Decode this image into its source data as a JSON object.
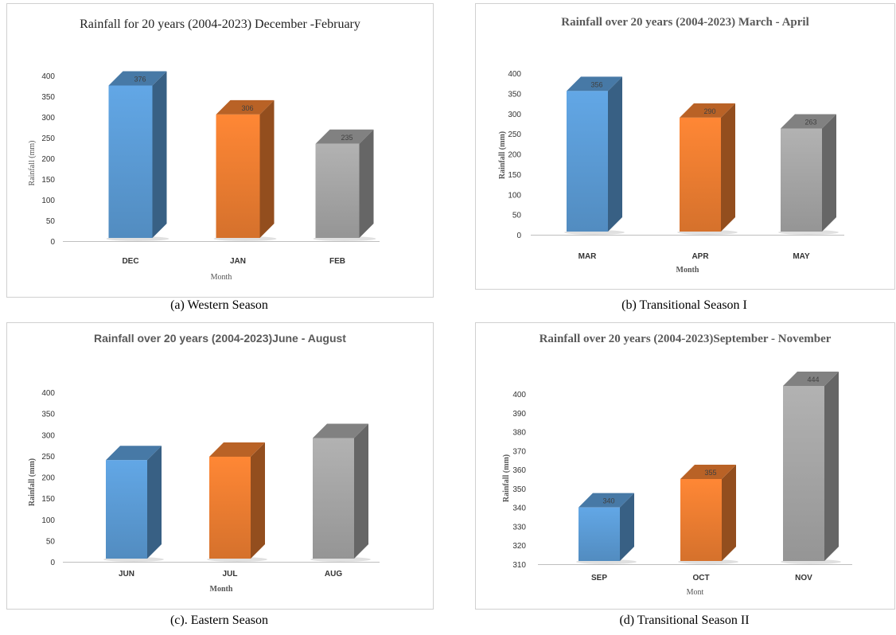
{
  "chart_data": [
    {
      "type": "bar",
      "title": "Rainfall for 20 years (2004-2023) December -February",
      "xlabel": "Month",
      "ylabel": "Rainfall (mm)",
      "categories": [
        "DEC",
        "JAN",
        "FEB"
      ],
      "values": [
        376,
        306,
        235
      ],
      "data_labels": [
        "376",
        "306",
        "235"
      ],
      "ylim": [
        0,
        400
      ],
      "yticks": [
        0,
        50,
        100,
        150,
        200,
        250,
        300,
        350,
        400
      ],
      "colors": [
        "#5b9bd5",
        "#ed7d31",
        "#a5a5a5"
      ],
      "caption": "(a) Western Season"
    },
    {
      "type": "bar",
      "title": "Rainfall over 20 years (2004-2023) March - April",
      "xlabel": "Month",
      "ylabel": "Rainfall (mm)",
      "categories": [
        "MAR",
        "APR",
        "MAY"
      ],
      "values": [
        356,
        290,
        263
      ],
      "data_labels": [
        "356",
        "290",
        "263"
      ],
      "ylim": [
        0,
        400
      ],
      "yticks": [
        0,
        50,
        100,
        150,
        200,
        250,
        300,
        350,
        400
      ],
      "colors": [
        "#5b9bd5",
        "#ed7d31",
        "#a5a5a5"
      ],
      "caption": "(b) Transitional Season I"
    },
    {
      "type": "bar",
      "title": "Rainfall over 20 years (2004-2023)June - August",
      "xlabel": "Month",
      "ylabel": "Rainfall (mm)",
      "categories": [
        "JUN",
        "JUL",
        "AUG"
      ],
      "values": [
        240,
        248,
        292
      ],
      "data_labels": [
        "",
        "",
        ""
      ],
      "ylim": [
        0,
        400
      ],
      "yticks": [
        0,
        50,
        100,
        150,
        200,
        250,
        300,
        350,
        400
      ],
      "colors": [
        "#5b9bd5",
        "#ed7d31",
        "#a5a5a5"
      ],
      "caption": "(c). Eastern Season"
    },
    {
      "type": "bar",
      "title": "Rainfall over 20 years (2004-2023)September - November",
      "xlabel": "Mont",
      "ylabel": "Rainfall (mm)",
      "categories": [
        "SEP",
        "OCT",
        "NOV"
      ],
      "values": [
        340,
        355,
        444
      ],
      "data_labels": [
        "340",
        "355",
        "444"
      ],
      "ylim": [
        310,
        400
      ],
      "yticks": [
        310,
        320,
        330,
        340,
        350,
        360,
        370,
        380,
        390,
        400
      ],
      "colors": [
        "#5b9bd5",
        "#ed7d31",
        "#a5a5a5"
      ],
      "caption": "(d) Transitional Season II"
    }
  ]
}
